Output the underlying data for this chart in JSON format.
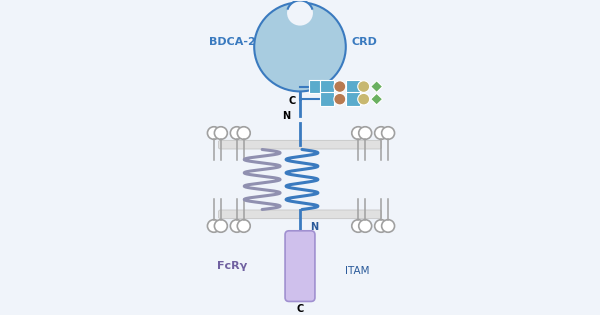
{
  "bg_color": "#f0f4fa",
  "blue_color": "#3a7abf",
  "dark_blue": "#2a5a9a",
  "gray_color": "#a0a0a0",
  "purple_color": "#cfc0ec",
  "purple_text": "#7060a0",
  "blue_text": "#3a7abf",
  "bdca2_label": "BDCA-2",
  "crd_label": "CRD",
  "N_label": "N",
  "C_label_crd": "C",
  "C_label_itam": "C",
  "FcRy_label": "FcRγ",
  "ITAM_label": "ITAM"
}
